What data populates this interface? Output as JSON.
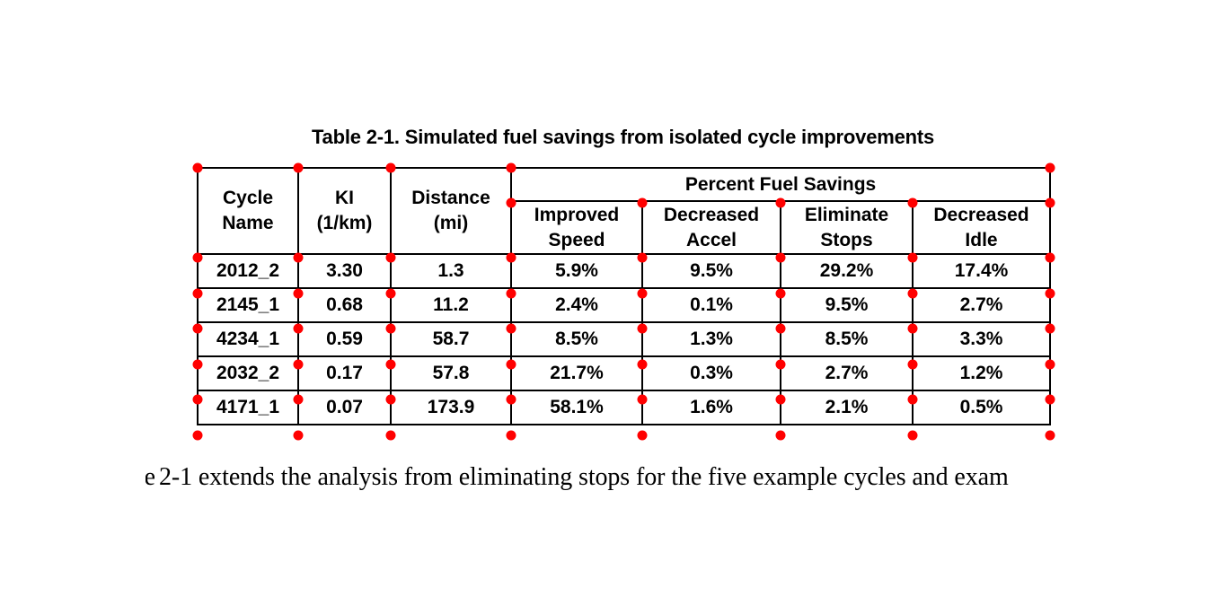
{
  "page_title": "Table 2-1. Simulated fuel savings from isolated cycle improvements",
  "table": {
    "header": {
      "cycle_name": "Cycle\nName",
      "ki": "KI\n(1/km)",
      "distance": "Distance\n(mi)",
      "group_label": "Percent Fuel Savings",
      "sub": [
        "Improved\nSpeed",
        "Decreased\nAccel",
        "Eliminate\nStops",
        "Decreased\nIdle"
      ]
    },
    "rows": [
      [
        "2012_2",
        "3.30",
        "1.3",
        "5.9%",
        "9.5%",
        "29.2%",
        "17.4%"
      ],
      [
        "2145_1",
        "0.68",
        "11.2",
        "2.4%",
        "0.1%",
        "9.5%",
        "2.7%"
      ],
      [
        "4234_1",
        "0.59",
        "58.7",
        "8.5%",
        "1.3%",
        "8.5%",
        "3.3%"
      ],
      [
        "2032_2",
        "0.17",
        "57.8",
        "21.7%",
        "0.3%",
        "2.7%",
        "1.2%"
      ],
      [
        "4171_1",
        "0.07",
        "173.9",
        "58.1%",
        "1.6%",
        "2.1%",
        "0.5%"
      ]
    ]
  },
  "caption_text": {
    "clipped_word_fragment": "e",
    "line": "2-1 extends the analysis from eliminating stops for the five example cycles and exam"
  },
  "annotation": {
    "marker_color": "#ff0000"
  }
}
